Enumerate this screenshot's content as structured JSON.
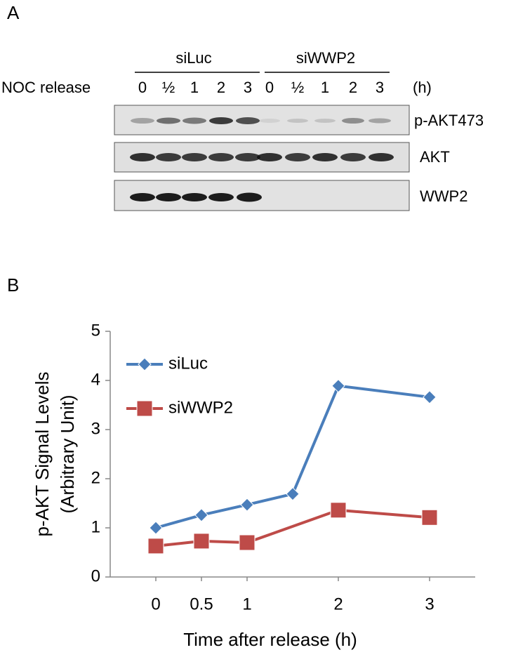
{
  "panel_labels": [
    "A",
    "B"
  ],
  "blot": {
    "groups": [
      "siLuc",
      "siWWP2"
    ],
    "row_label": "NOC release",
    "lanes": [
      [
        "0",
        "½",
        "1",
        "2",
        "3"
      ],
      [
        "0",
        "½",
        "1",
        "2",
        "3"
      ]
    ],
    "unit": "(h)",
    "bands": [
      "p-AKT473",
      "AKT",
      "WWP2"
    ]
  },
  "chart_data": {
    "type": "line",
    "ylabel": [
      "p-AKT Signal Levels",
      "(Arbitrary Unit)"
    ],
    "xlabel": "Time after release (h)",
    "xlim": [
      -0.5,
      3.5
    ],
    "xticks": [
      0,
      0.5,
      1,
      2,
      3
    ],
    "ylim": [
      0,
      5
    ],
    "yticks": [
      0,
      1,
      2,
      3,
      4,
      5
    ],
    "legend": "upper left",
    "series": [
      {
        "name": "siLuc",
        "color": "#4a7ebb",
        "marker": "diamond",
        "x": [
          0,
          0.5,
          1,
          1.5,
          2,
          3
        ],
        "values": [
          1.0,
          1.26,
          1.47,
          1.69,
          3.89,
          3.66
        ]
      },
      {
        "name": "siWWP2",
        "color": "#be4b48",
        "marker": "square",
        "x": [
          0,
          0.5,
          1,
          2,
          3
        ],
        "values": [
          0.63,
          0.73,
          0.7,
          1.36,
          1.21
        ]
      }
    ]
  }
}
